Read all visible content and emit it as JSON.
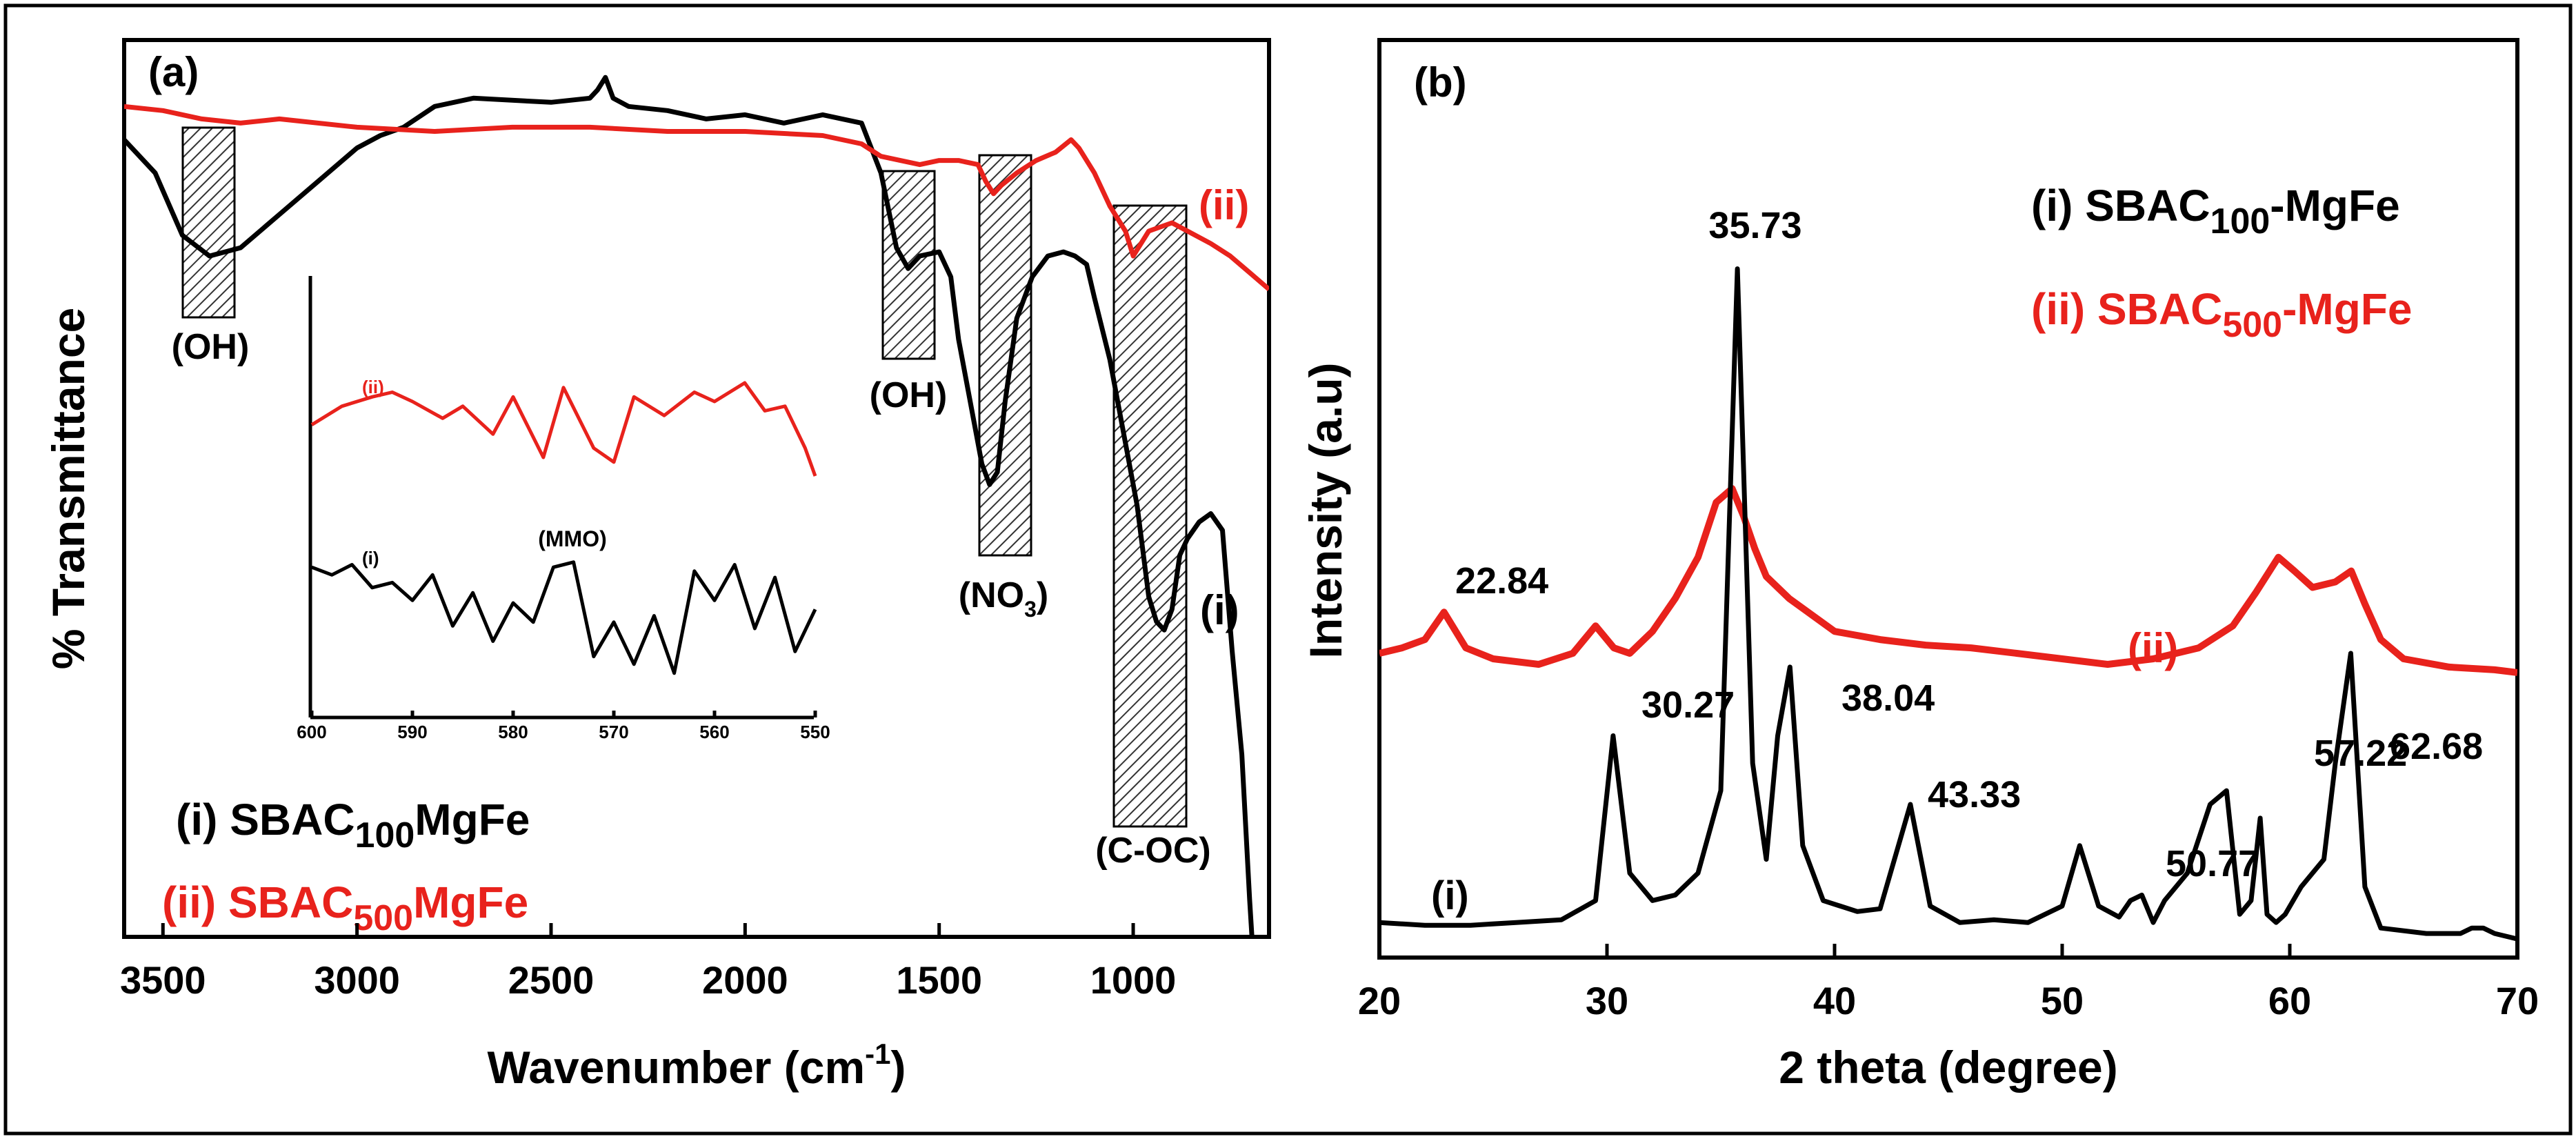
{
  "chart_data": [
    {
      "type": "line",
      "panel_label": "(a)",
      "xlabel": "Wavenumber (cm",
      "xlabel_sup": "-1",
      "xlabel_end": ")",
      "ylabel": "% Transmittance",
      "xlim": [
        3600,
        650
      ],
      "x_ticks": [
        "3500",
        "3000",
        "2500",
        "2000",
        "1500",
        "1000"
      ],
      "x_tick_values": [
        3500,
        3000,
        2500,
        2000,
        1500,
        1000
      ],
      "series": [
        {
          "name": "(i) SBAC100MgFe",
          "color": "#000000",
          "x": [
            3600,
            3520,
            3450,
            3380,
            3300,
            3200,
            3100,
            3000,
            2940,
            2880,
            2800,
            2700,
            2500,
            2400,
            2380,
            2360,
            2340,
            2300,
            2200,
            2100,
            2000,
            1900,
            1800,
            1700,
            1650,
            1610,
            1580,
            1550,
            1500,
            1470,
            1450,
            1420,
            1390,
            1370,
            1350,
            1330,
            1300,
            1260,
            1220,
            1180,
            1150,
            1120,
            1100,
            1060,
            1020,
            990,
            960,
            940,
            920,
            900,
            880,
            860,
            830,
            800,
            770,
            745,
            720,
            700,
            690
          ],
          "y": [
            88,
            80,
            65,
            60,
            62,
            70,
            78,
            86,
            89,
            91,
            96,
            98,
            97,
            98,
            100,
            103,
            98,
            96,
            95,
            93,
            94,
            92,
            94,
            92,
            80,
            62,
            57,
            60,
            61,
            55,
            40,
            25,
            10,
            5,
            8,
            25,
            45,
            55,
            60,
            61,
            60,
            58,
            50,
            35,
            15,
            0,
            -22,
            -28,
            -30,
            -25,
            -12,
            -8,
            -4,
            -2,
            -6,
            -35,
            -60,
            -95,
            -110
          ]
        },
        {
          "name": "(ii) SBAC500MgFe",
          "color": "#e8221c",
          "x": [
            3600,
            3500,
            3400,
            3300,
            3200,
            3000,
            2800,
            2600,
            2400,
            2200,
            2000,
            1800,
            1700,
            1650,
            1600,
            1550,
            1500,
            1450,
            1400,
            1380,
            1360,
            1340,
            1300,
            1250,
            1200,
            1160,
            1140,
            1100,
            1060,
            1020,
            1000,
            980,
            960,
            930,
            900,
            860,
            800,
            750,
            700,
            650
          ],
          "y": [
            96,
            95,
            93,
            92,
            93,
            91,
            90,
            91,
            91,
            90,
            90,
            89,
            87,
            84,
            83,
            82,
            83,
            83,
            82,
            78,
            75,
            77,
            80,
            83,
            85,
            88,
            86,
            80,
            72,
            66,
            60,
            63,
            66,
            67,
            68,
            66,
            63,
            60,
            56,
            52
          ]
        }
      ],
      "annotations": [
        {
          "text": "(OH)",
          "x": 3380
        },
        {
          "text": "(OH)",
          "x": 1620
        },
        {
          "text": "(NO",
          "sub": "3",
          "end": ")",
          "x": 1380
        },
        {
          "text": "(C-OC)",
          "x": 960
        }
      ],
      "series_labels": {
        "i": "(i)",
        "ii": "(ii)"
      },
      "legend": [
        {
          "prefix": "(i) SBAC",
          "sub": "100",
          "suffix": "MgFe",
          "color": "#000000"
        },
        {
          "prefix": "(ii) SBAC",
          "sub": "500",
          "suffix": "MgFe",
          "color": "#e8221c"
        }
      ],
      "inset": {
        "xlim": [
          600,
          550
        ],
        "x_ticks": [
          "600",
          "590",
          "580",
          "570",
          "560",
          "550"
        ],
        "x_tick_values": [
          600,
          590,
          580,
          570,
          560,
          550
        ],
        "label": "(MMO)",
        "series_labels": {
          "i": "(i)",
          "ii": "(ii)"
        },
        "series": [
          {
            "name": "(ii)",
            "color": "#e8221c",
            "x": [
              600,
              597,
              594,
              592,
              590,
              587,
              585,
              582,
              580,
              577,
              575,
              572,
              570,
              568,
              565,
              562,
              560,
              557,
              555,
              553,
              551,
              550
            ],
            "y": [
              0.55,
              0.75,
              0.85,
              0.9,
              0.8,
              0.62,
              0.75,
              0.45,
              0.85,
              0.2,
              0.95,
              0.3,
              0.15,
              0.85,
              0.65,
              0.9,
              0.8,
              1.0,
              0.7,
              0.75,
              0.3,
              0.0
            ]
          },
          {
            "name": "(i)",
            "color": "#000000",
            "x": [
              600,
              598,
              596,
              594,
              592,
              590,
              588,
              586,
              584,
              582,
              580,
              578,
              576,
              574,
              572,
              570,
              568,
              566,
              564,
              562,
              560,
              558,
              556,
              554,
              552,
              550
            ],
            "y": [
              0.88,
              0.82,
              0.9,
              0.72,
              0.76,
              0.62,
              0.82,
              0.42,
              0.68,
              0.3,
              0.6,
              0.45,
              0.88,
              0.92,
              0.18,
              0.45,
              0.12,
              0.5,
              0.05,
              0.85,
              0.62,
              0.9,
              0.4,
              0.8,
              0.22,
              0.55
            ]
          }
        ]
      }
    },
    {
      "type": "line",
      "panel_label": "(b)",
      "xlabel": "2 theta (degree)",
      "ylabel": "Intensity (a.u)",
      "xlim": [
        20,
        70
      ],
      "x_ticks": [
        "20",
        "30",
        "40",
        "50",
        "60",
        "70"
      ],
      "x_tick_values": [
        20,
        30,
        40,
        50,
        60,
        70
      ],
      "series": [
        {
          "name": "(i) SBAC100-MgFe",
          "color": "#000000",
          "x": [
            20,
            22,
            24,
            26,
            28,
            29.5,
            30.27,
            31,
            32,
            33,
            34,
            35,
            35.73,
            36.4,
            37,
            37.5,
            38.04,
            38.6,
            39.5,
            41,
            42,
            43.33,
            44.2,
            45.5,
            47,
            48.5,
            50,
            50.77,
            51.6,
            52.5,
            53,
            53.5,
            54,
            54.5,
            55.5,
            56.5,
            57.22,
            57.8,
            58.3,
            58.7,
            59,
            59.4,
            59.8,
            60.5,
            61.5,
            62,
            62.68,
            63.3,
            64,
            66,
            67.5,
            68,
            68.5,
            69,
            70
          ],
          "y": [
            12,
            11,
            11,
            12,
            13,
            20,
            80,
            30,
            20,
            22,
            30,
            60,
            250,
            70,
            35,
            80,
            105,
            40,
            20,
            16,
            17,
            55,
            18,
            12,
            13,
            12,
            18,
            40,
            18,
            14,
            20,
            22,
            12,
            20,
            30,
            55,
            60,
            15,
            20,
            50,
            15,
            12,
            15,
            25,
            35,
            70,
            110,
            25,
            10,
            8,
            8,
            10,
            10,
            8,
            6
          ]
        },
        {
          "name": "(ii) SBAC500-MgFe",
          "color": "#e8221c",
          "x": [
            20,
            21,
            22,
            22.84,
            23.8,
            25,
            27,
            28.5,
            29.5,
            30.3,
            31,
            32,
            33,
            34,
            34.8,
            35.5,
            36,
            36.5,
            37,
            38,
            39,
            40,
            42,
            44,
            46,
            48,
            50,
            52,
            54,
            56,
            57.5,
            58.5,
            59.5,
            60.2,
            61,
            62,
            62.7,
            63.3,
            64,
            65,
            67,
            69,
            70
          ],
          "y": [
            110,
            112,
            115,
            125,
            112,
            108,
            106,
            110,
            120,
            112,
            110,
            118,
            130,
            145,
            165,
            170,
            160,
            148,
            138,
            130,
            124,
            118,
            115,
            113,
            112,
            110,
            108,
            106,
            108,
            112,
            120,
            132,
            145,
            140,
            134,
            136,
            140,
            128,
            115,
            108,
            105,
            104,
            103
          ]
        }
      ],
      "peak_labels": [
        {
          "text": "22.84",
          "x": 22.84
        },
        {
          "text": "30.27",
          "x": 30.27
        },
        {
          "text": "35.73",
          "x": 35.73
        },
        {
          "text": "38.04",
          "x": 38.04
        },
        {
          "text": "43.33",
          "x": 43.33
        },
        {
          "text": "50.77",
          "x": 50.77
        },
        {
          "text": "57.22",
          "x": 57.22
        },
        {
          "text": "62.68",
          "x": 62.68
        }
      ],
      "series_labels": {
        "i": "(i)",
        "ii": "(ii)"
      },
      "legend": [
        {
          "prefix": "(i) SBAC",
          "sub": "100",
          "suffix": "-MgFe",
          "color": "#000000"
        },
        {
          "prefix": "(ii) SBAC",
          "sub": "500",
          "suffix": "-MgFe",
          "color": "#e8221c"
        }
      ]
    }
  ]
}
